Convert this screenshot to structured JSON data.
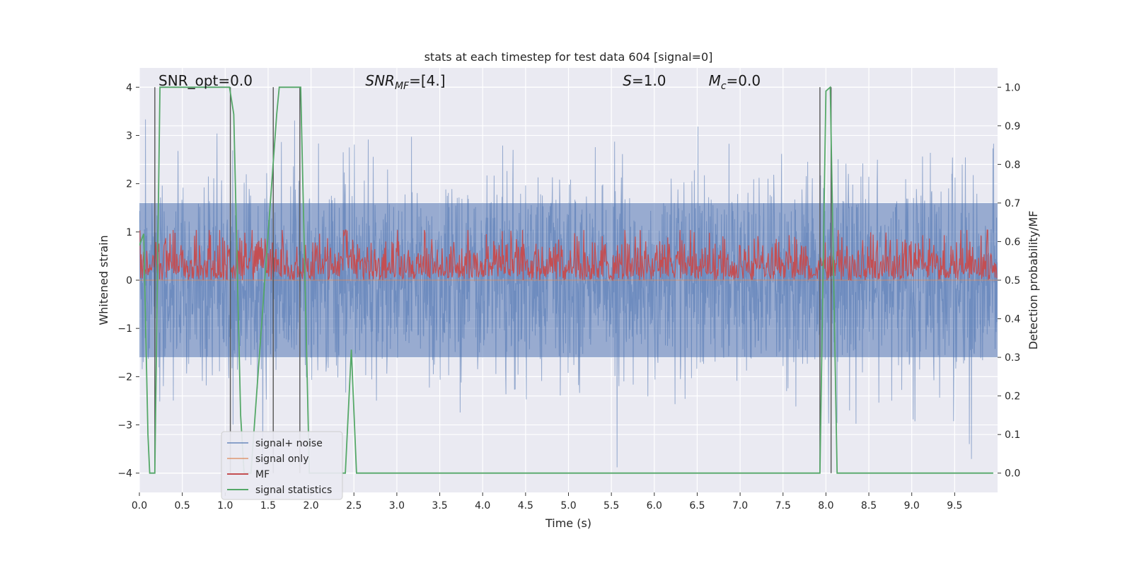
{
  "chart_data": {
    "type": "line",
    "title": "stats at each timestep for test data 604 [signal=0]",
    "xlabel": "Time (s)",
    "ylabel": "Whitened strain",
    "ylabel_right": "Detection probability/MF",
    "xlim": [
      0,
      10
    ],
    "ylim": [
      -4.4,
      4.4
    ],
    "ylim_right": [
      -0.05,
      1.05
    ],
    "x_ticks": [
      0.0,
      0.5,
      1.0,
      1.5,
      2.0,
      2.5,
      3.0,
      3.5,
      4.0,
      4.5,
      5.0,
      5.5,
      6.0,
      6.5,
      7.0,
      7.5,
      8.0,
      8.5,
      9.0,
      9.5
    ],
    "x_tick_labels": [
      "0.0",
      "0.5",
      "1.0",
      "1.5",
      "2.0",
      "2.5",
      "3.0",
      "3.5",
      "4.0",
      "4.5",
      "5.0",
      "5.5",
      "6.0",
      "6.5",
      "7.0",
      "7.5",
      "8.0",
      "8.5",
      "9.0",
      "9.5"
    ],
    "y_ticks": [
      -4,
      -3,
      -2,
      -1,
      0,
      1,
      2,
      3,
      4
    ],
    "y_tick_labels": [
      "−4",
      "−3",
      "−2",
      "−1",
      "0",
      "1",
      "2",
      "3",
      "4"
    ],
    "y_ticks_right": [
      0.0,
      0.1,
      0.2,
      0.3,
      0.4,
      0.5,
      0.6,
      0.7,
      0.8,
      0.9,
      1.0
    ],
    "y_tick_labels_right": [
      "0.0",
      "0.1",
      "0.2",
      "0.3",
      "0.4",
      "0.5",
      "0.6",
      "0.7",
      "0.8",
      "0.9",
      "1.0"
    ],
    "grid": true,
    "legend_position": "lower-left",
    "annotations": [
      {
        "base": "SNR_opt=0.0",
        "sub": "",
        "tail": "",
        "x": 0.19
      },
      {
        "base": "SNR",
        "sub": "MF",
        "tail": "=[4.]",
        "x": 2.6,
        "italic": true
      },
      {
        "base": "S",
        "sub": "",
        "tail": "=1.0",
        "x": 5.6,
        "italic": true
      },
      {
        "base": "M",
        "sub": "c",
        "tail": "=0.0",
        "x": 6.6,
        "italic": true
      }
    ],
    "series": [
      {
        "name": "signal+ noise",
        "color": "#4c72b0",
        "axis": "left",
        "style": "noise band",
        "typical_range": [
          -1.6,
          1.6
        ],
        "peak_range": [
          -4.0,
          4.0
        ]
      },
      {
        "name": "signal only",
        "color": "#dd8452",
        "axis": "left",
        "style": "flat",
        "values_note": "0"
      },
      {
        "name": "MF",
        "color": "#c44e52",
        "axis": "right",
        "style": "noise band",
        "typical_range": [
          0.5,
          0.6
        ],
        "peak_range": [
          0.5,
          0.63
        ]
      },
      {
        "name": "signal statistics",
        "color": "#55a868",
        "axis": "right",
        "x": [
          0.0,
          0.05,
          0.1,
          0.12,
          0.18,
          0.24,
          1.05,
          1.1,
          1.18,
          1.22,
          1.3,
          1.6,
          1.63,
          1.88,
          1.93,
          1.98,
          2.35,
          2.4,
          2.47,
          2.53,
          7.93,
          8.0,
          8.05,
          8.13,
          9.95
        ],
        "y": [
          0.59,
          0.62,
          0.1,
          0.0,
          0.0,
          1.0,
          1.0,
          0.93,
          0.15,
          0.0,
          0.0,
          0.93,
          1.0,
          1.0,
          0.5,
          0.0,
          0.0,
          0.0,
          0.32,
          0.0,
          0.0,
          0.99,
          1.0,
          0.0,
          0.0
        ]
      }
    ],
    "vertical_lines": [
      0.18,
      1.06,
      1.56,
      1.87,
      7.93,
      8.06
    ]
  },
  "colors": {
    "plot_background": "#eaeaf2",
    "grid": "#ffffff",
    "vlines": "#555555"
  }
}
